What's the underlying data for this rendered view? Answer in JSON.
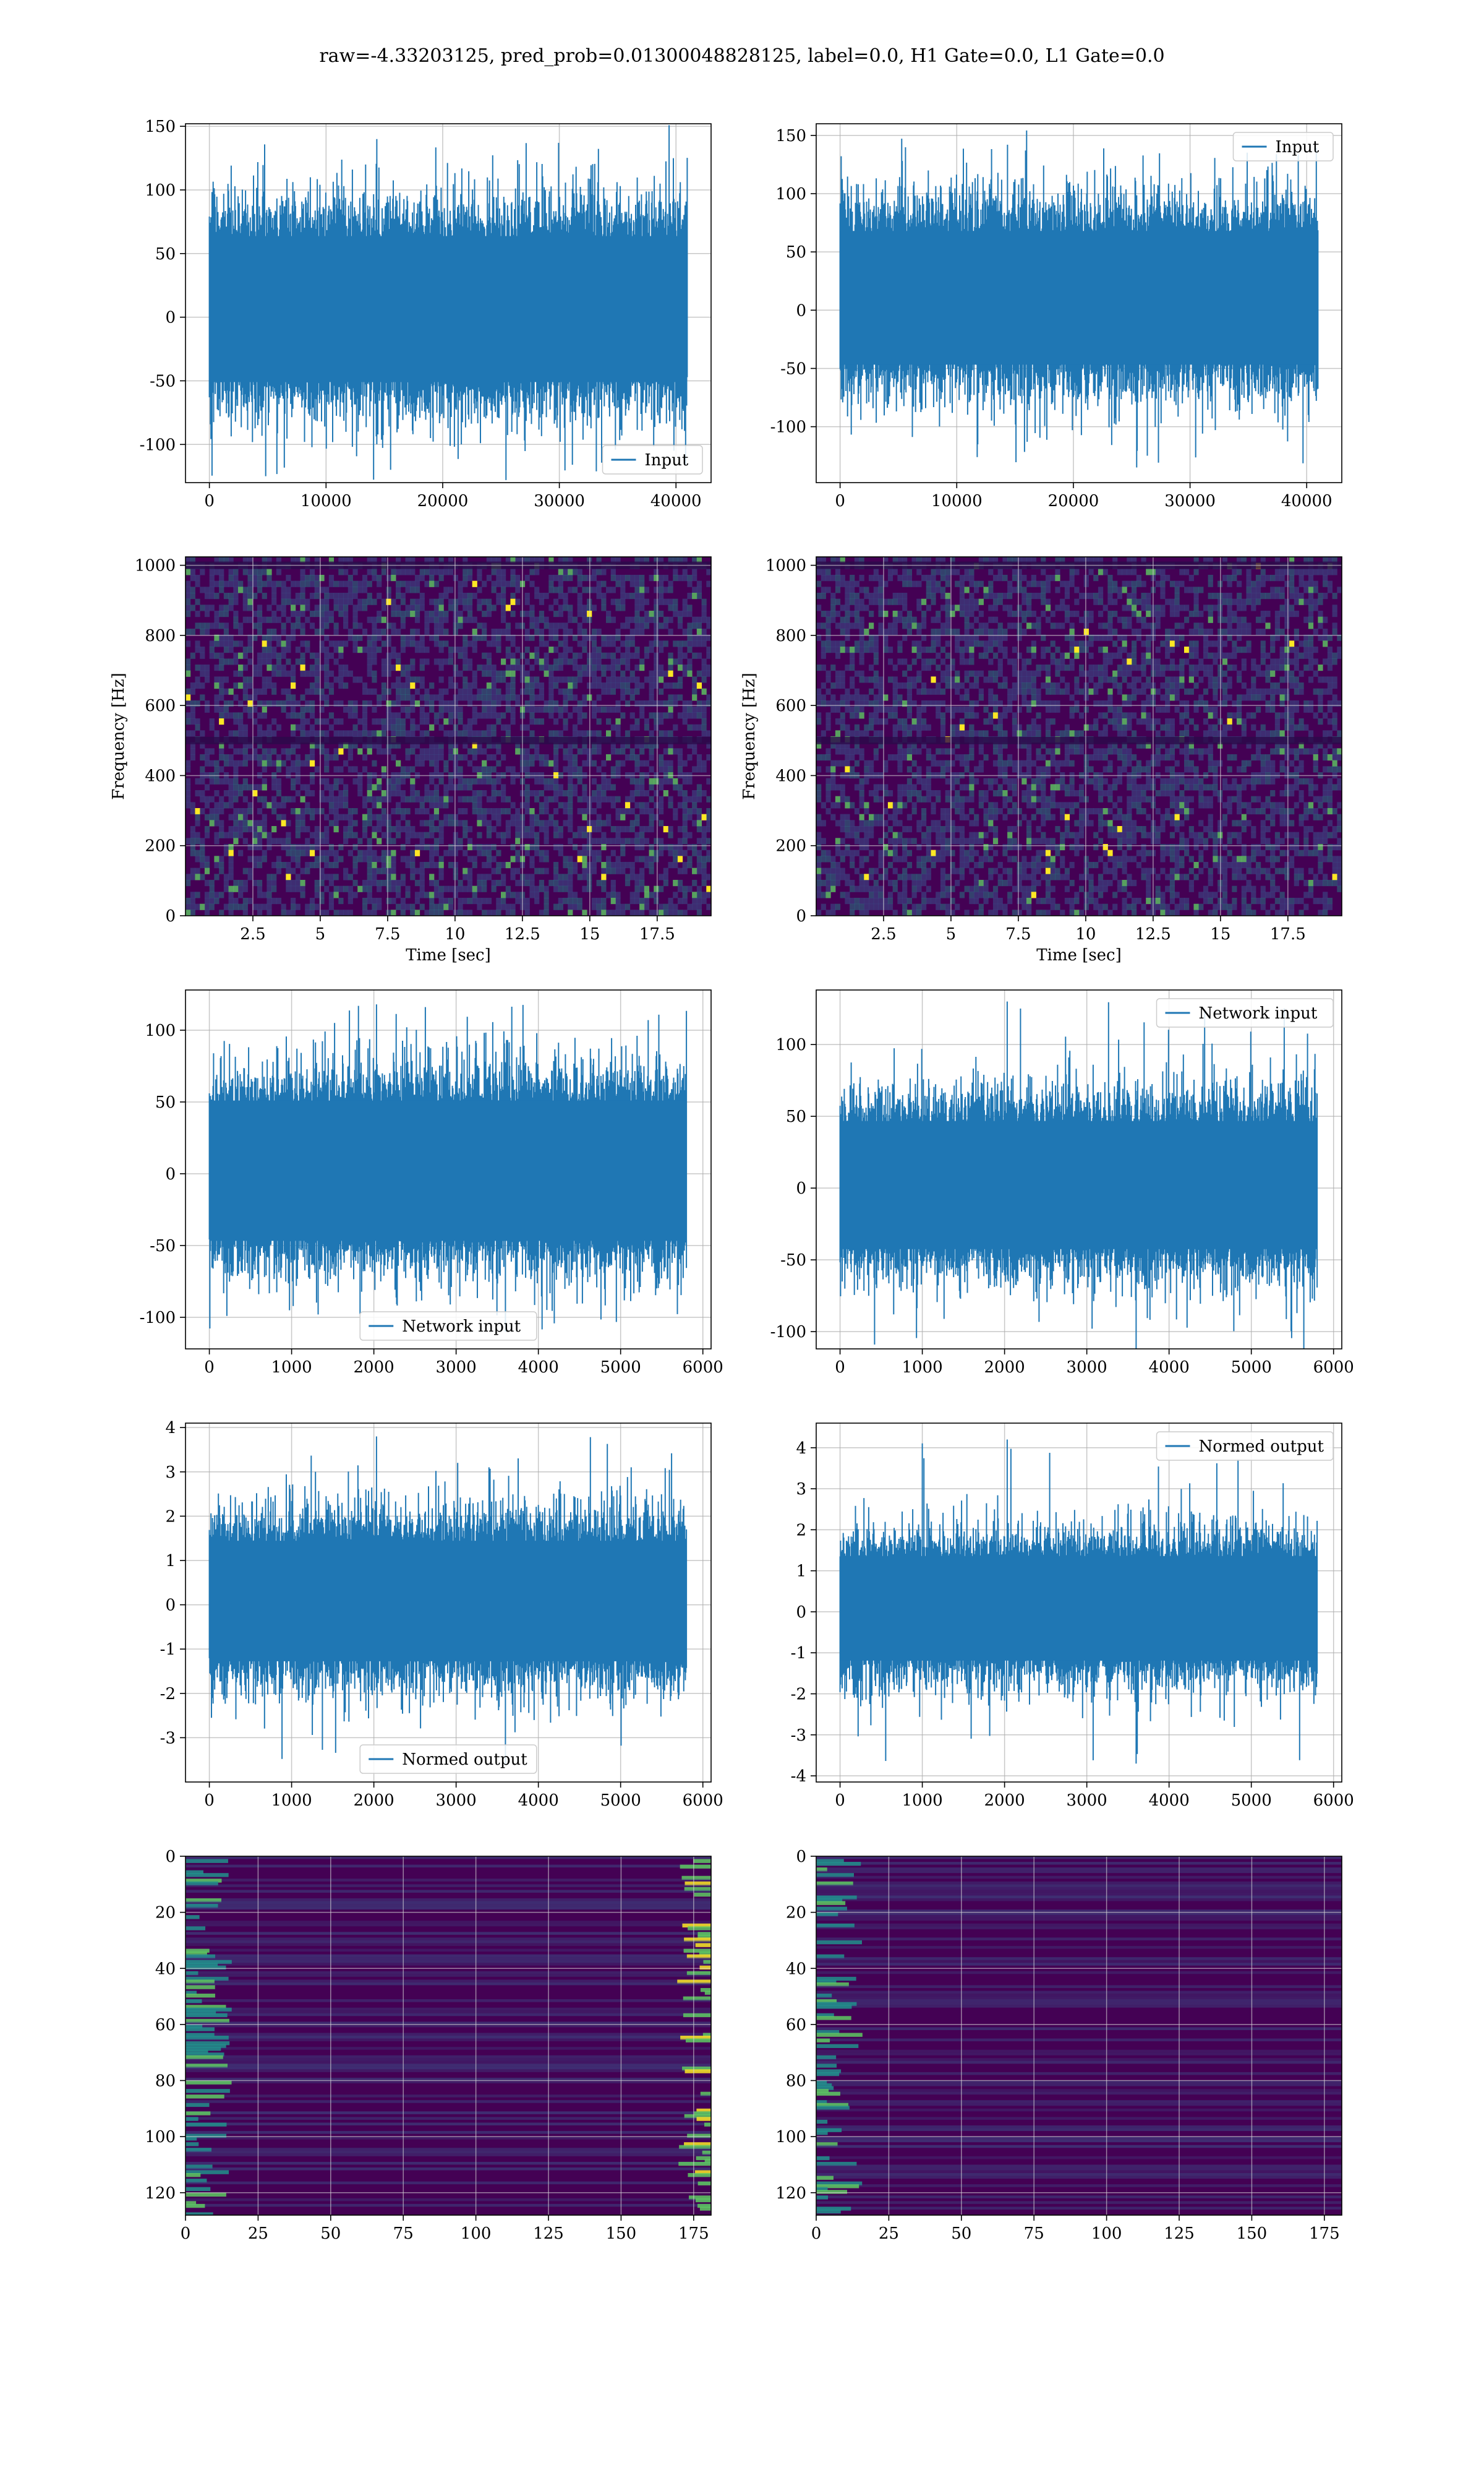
{
  "figure": {
    "suptitle": "raw=-4.33203125, pred_prob=0.01300048828125, label=0.0, H1 Gate=0.0, L1 Gate=0.0"
  },
  "colors": {
    "line": "#1f77b4",
    "grid": "#b0b0b0",
    "viridis_low": "#440154",
    "viridis_mid": "#21918c",
    "viridis_high": "#fde725"
  },
  "chart_data": [
    {
      "type": "line",
      "row": 0,
      "col": 0,
      "title": "",
      "xlabel": "",
      "ylabel": "",
      "legend": {
        "label": "Input",
        "loc": "lower-right"
      },
      "xlim": [
        -2048,
        43008
      ],
      "ylim": [
        -130,
        152
      ],
      "xticks": [
        0,
        10000,
        20000,
        30000,
        40000
      ],
      "yticks": [
        -100,
        -50,
        0,
        50,
        100,
        150
      ],
      "grid": true,
      "series": [
        {
          "name": "Input",
          "x_range": [
            0,
            40960
          ],
          "envelope": [
            -60,
            75
          ],
          "max": 140,
          "min": -128
        }
      ]
    },
    {
      "type": "line",
      "row": 0,
      "col": 1,
      "title": "",
      "xlabel": "",
      "ylabel": "",
      "legend": {
        "label": "Input",
        "loc": "upper-right"
      },
      "xlim": [
        -2048,
        43008
      ],
      "ylim": [
        -148,
        160
      ],
      "xticks": [
        0,
        10000,
        20000,
        30000,
        40000
      ],
      "yticks": [
        -100,
        -50,
        0,
        50,
        100,
        150
      ],
      "grid": true,
      "series": [
        {
          "name": "Input",
          "x_range": [
            0,
            40960
          ],
          "envelope": [
            -55,
            80
          ],
          "max": 142,
          "min": -135
        }
      ]
    },
    {
      "type": "heatmap",
      "row": 1,
      "col": 0,
      "title": "",
      "xlabel": "Time [sec]",
      "ylabel": "Frequency [Hz]",
      "xlim": [
        0,
        19.5
      ],
      "ylim": [
        0,
        1024
      ],
      "xticks": [
        2.5,
        5.0,
        7.5,
        10.0,
        12.5,
        15.0,
        17.5
      ],
      "yticks": [
        0,
        200,
        400,
        600,
        800,
        1000
      ],
      "grid": true,
      "colormap": "viridis",
      "dark_bands_hz": [
        500,
        1000
      ]
    },
    {
      "type": "heatmap",
      "row": 1,
      "col": 1,
      "title": "",
      "xlabel": "Time [sec]",
      "ylabel": "Frequency [Hz]",
      "xlim": [
        0,
        19.5
      ],
      "ylim": [
        0,
        1024
      ],
      "xticks": [
        2.5,
        5.0,
        7.5,
        10.0,
        12.5,
        15.0,
        17.5
      ],
      "yticks": [
        0,
        200,
        400,
        600,
        800,
        1000
      ],
      "grid": true,
      "colormap": "viridis",
      "dark_bands_hz": [
        500,
        1000
      ]
    },
    {
      "type": "line",
      "row": 2,
      "col": 0,
      "title": "",
      "xlabel": "",
      "ylabel": "",
      "legend": {
        "label": "Network input",
        "loc": "lower-center"
      },
      "xlim": [
        -290,
        6100
      ],
      "ylim": [
        -122,
        128
      ],
      "xticks": [
        0,
        1000,
        2000,
        3000,
        4000,
        5000,
        6000
      ],
      "yticks": [
        -100,
        -50,
        0,
        50,
        100
      ],
      "grid": true,
      "series": [
        {
          "name": "Network input",
          "x_range": [
            0,
            5800
          ],
          "envelope": [
            -55,
            60
          ],
          "max": 118,
          "min": -110
        }
      ]
    },
    {
      "type": "line",
      "row": 2,
      "col": 1,
      "title": "",
      "xlabel": "",
      "ylabel": "",
      "legend": {
        "label": "Network input",
        "loc": "upper-right"
      },
      "xlim": [
        -290,
        6100
      ],
      "ylim": [
        -112,
        138
      ],
      "xticks": [
        0,
        1000,
        2000,
        3000,
        4000,
        5000,
        6000
      ],
      "yticks": [
        -100,
        -50,
        0,
        50,
        100
      ],
      "grid": true,
      "series": [
        {
          "name": "Network input",
          "x_range": [
            0,
            5800
          ],
          "envelope": [
            -50,
            55
          ],
          "max": 130,
          "min": -115
        }
      ]
    },
    {
      "type": "line",
      "row": 3,
      "col": 0,
      "title": "",
      "xlabel": "",
      "ylabel": "",
      "legend": {
        "label": "Normed output",
        "loc": "lower-center"
      },
      "xlim": [
        -290,
        6100
      ],
      "ylim": [
        -4.0,
        4.1
      ],
      "xticks": [
        0,
        1000,
        2000,
        3000,
        4000,
        5000,
        6000
      ],
      "yticks": [
        -3,
        -2,
        -1,
        0,
        1,
        2,
        3,
        4
      ],
      "grid": true,
      "series": [
        {
          "name": "Normed output",
          "x_range": [
            0,
            5800
          ],
          "envelope": [
            -1.5,
            1.7
          ],
          "max": 3.8,
          "min": -3.6
        }
      ]
    },
    {
      "type": "line",
      "row": 3,
      "col": 1,
      "title": "",
      "xlabel": "",
      "ylabel": "",
      "legend": {
        "label": "Normed output",
        "loc": "upper-right"
      },
      "xlim": [
        -290,
        6100
      ],
      "ylim": [
        -4.15,
        4.6
      ],
      "xticks": [
        0,
        1000,
        2000,
        3000,
        4000,
        5000,
        6000
      ],
      "yticks": [
        -4,
        -3,
        -2,
        -1,
        0,
        1,
        2,
        3,
        4
      ],
      "grid": true,
      "series": [
        {
          "name": "Normed output",
          "x_range": [
            0,
            5800
          ],
          "envelope": [
            -1.4,
            1.6
          ],
          "max": 4.2,
          "min": -3.7
        }
      ]
    },
    {
      "type": "heatmap",
      "row": 4,
      "col": 0,
      "title": "",
      "xlabel": "",
      "ylabel": "",
      "xlim": [
        0,
        181
      ],
      "ylim": [
        128,
        0
      ],
      "xticks": [
        0,
        25,
        50,
        75,
        100,
        125,
        150,
        175
      ],
      "yticks": [
        0,
        20,
        40,
        60,
        80,
        100,
        120
      ],
      "grid": true,
      "colormap": "viridis",
      "bright_edges": [
        "left",
        "right"
      ]
    },
    {
      "type": "heatmap",
      "row": 4,
      "col": 1,
      "title": "",
      "xlabel": "",
      "ylabel": "",
      "xlim": [
        0,
        181
      ],
      "ylim": [
        128,
        0
      ],
      "xticks": [
        0,
        25,
        50,
        75,
        100,
        125,
        150,
        175
      ],
      "yticks": [
        0,
        20,
        40,
        60,
        80,
        100,
        120
      ],
      "grid": true,
      "colormap": "viridis",
      "bright_edges": [
        "left"
      ]
    }
  ]
}
